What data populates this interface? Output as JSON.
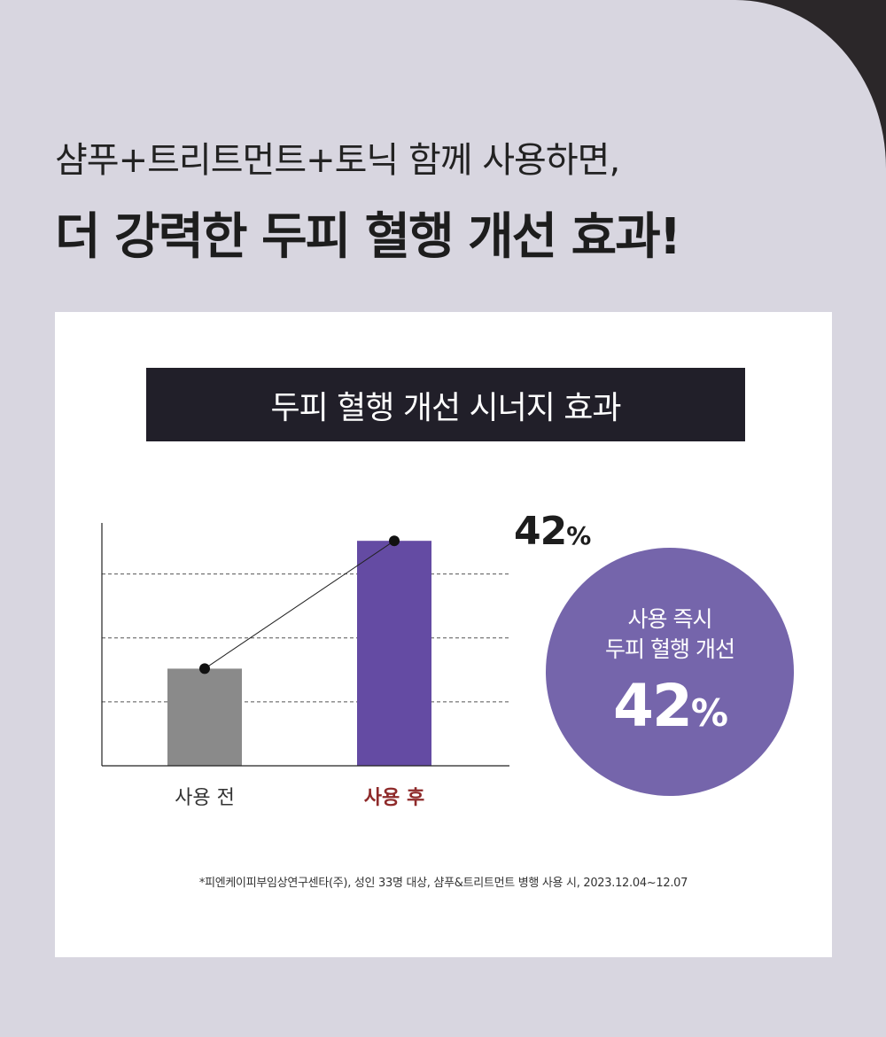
{
  "headline": {
    "line1": "샴푸+트리트먼트+토닉 함께 사용하면,",
    "line2": "더 강력한 두피 혈행 개선 효과!"
  },
  "card": {
    "banner_title": "두피 혈행 개선 시너지 효과",
    "top_value": "42",
    "top_value_unit": "%",
    "circle": {
      "line1": "사용 즉시",
      "line2": "두피 혈행 개선",
      "value": "42",
      "unit": "%"
    },
    "footnote": "*피엔케이피부임상연구센타(주), 성인 33명 대상, 샴푸&트리트먼트 병행 사용 시, 2023.12.04~12.07"
  },
  "chart_data": {
    "type": "bar",
    "categories": [
      "사용 전",
      "사용 후"
    ],
    "values": [
      1.52,
      3.52
    ],
    "ylim": [
      0,
      3.8
    ],
    "grid_lines": [
      1,
      2,
      3
    ],
    "grid": true,
    "colors": [
      "#8a8a8a",
      "#644ba3"
    ],
    "highlight_category_color": "#8e2a2a"
  },
  "colors": {
    "background": "#d8d6e0",
    "banner": "#211f29",
    "circle": "#7565ab",
    "bar_before": "#8a8a8a",
    "bar_after": "#644ba3"
  }
}
